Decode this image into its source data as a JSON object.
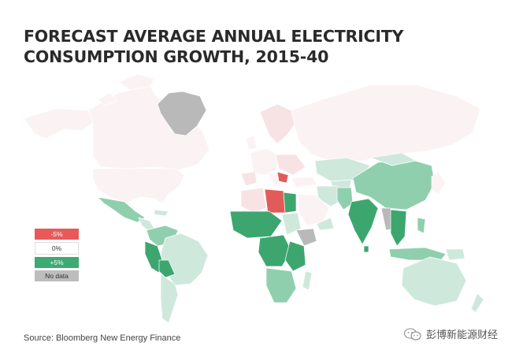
{
  "title": {
    "line1": "FORECAST AVERAGE ANNUAL ELECTRICITY",
    "line2": "CONSUMPTION GROWTH, 2015-40"
  },
  "legend": {
    "items": [
      {
        "label": "-5%",
        "color": "#e85a5a",
        "text_color": "#ffffff"
      },
      {
        "label": "0%",
        "color": "#ffffff",
        "text_color": "#333333"
      },
      {
        "label": "+5%",
        "color": "#3daa72",
        "text_color": "#ffffff"
      },
      {
        "label": "No data",
        "color": "#bdbdbd",
        "text_color": "#333333"
      }
    ]
  },
  "colors": {
    "strong_negative": "#e25b5b",
    "light_negative": "#f7e3e4",
    "neutral": "#fbf2f3",
    "light_positive": "#cfe8dc",
    "mid_positive": "#8fcfae",
    "strong_positive": "#3da66f",
    "no_data": "#b9b9b9"
  },
  "source": "Source:  Bloomberg New Energy Finance",
  "watermark": {
    "text": "彭博新能源财经",
    "icon": "wechat-icon"
  }
}
